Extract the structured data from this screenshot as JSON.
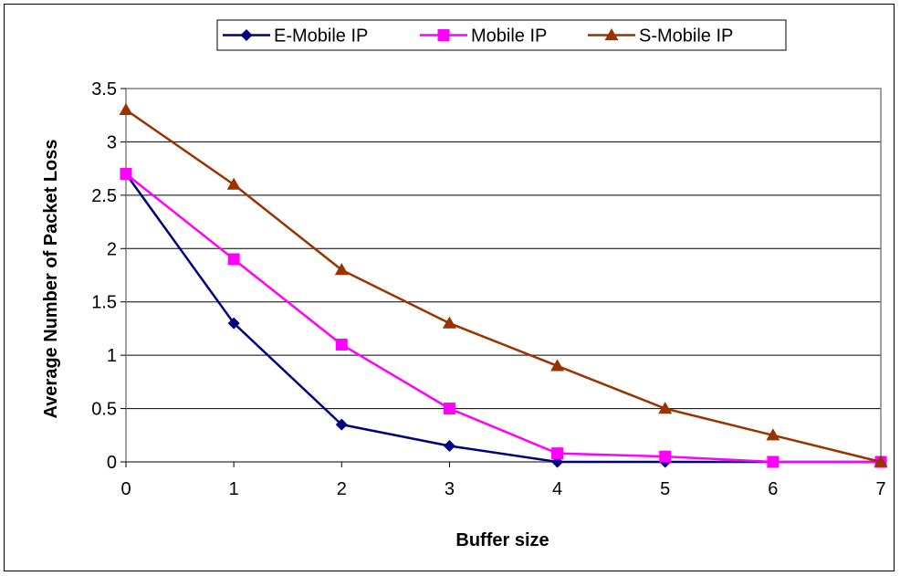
{
  "chart_data": {
    "type": "line",
    "title": "",
    "xlabel": "Buffer size",
    "ylabel": "Average Number of Packet Loss",
    "x": [
      0,
      1,
      2,
      3,
      4,
      5,
      6,
      7
    ],
    "xlim": [
      0,
      7
    ],
    "ylim": [
      0,
      3.5
    ],
    "yticks": [
      "0",
      "0.5",
      "1",
      "1.5",
      "2",
      "2.5",
      "3",
      "3.5"
    ],
    "xticks": [
      "0",
      "1",
      "2",
      "3",
      "4",
      "5",
      "6",
      "7"
    ],
    "grid": "horizontal",
    "legend_position": "top",
    "series": [
      {
        "name": "E-Mobile IP",
        "marker": "diamond",
        "color": "#000080",
        "values": [
          2.7,
          1.3,
          0.35,
          0.15,
          0.0,
          0.0,
          0.0,
          0.0
        ]
      },
      {
        "name": "Mobile IP",
        "marker": "square",
        "color": "#ff00ff",
        "values": [
          2.7,
          1.9,
          1.1,
          0.5,
          0.08,
          0.05,
          0.0,
          0.0
        ]
      },
      {
        "name": "S-Mobile IP",
        "marker": "triangle",
        "color": "#993300",
        "values": [
          3.3,
          2.6,
          1.8,
          1.3,
          0.9,
          0.5,
          0.25,
          0.0
        ]
      }
    ]
  }
}
